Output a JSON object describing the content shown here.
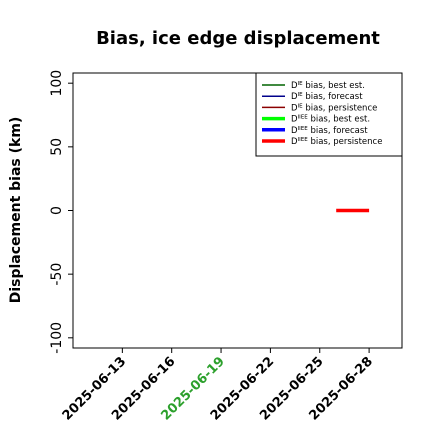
{
  "chart_data": {
    "type": "line",
    "title": "Bias, ice edge displacement",
    "xlabel": "",
    "ylabel": "Displacement bias (km)",
    "ylim": [
      -108,
      108
    ],
    "xlim": [
      "2025-06-10",
      "2025-06-30"
    ],
    "yticks": [
      -100,
      -50,
      0,
      50,
      100
    ],
    "xticks": [
      "2025-06-13",
      "2025-06-16",
      "2025-06-19",
      "2025-06-22",
      "2025-06-25",
      "2025-06-28"
    ],
    "xtick_colors": [
      "#000000",
      "#000000",
      "#2ca02c",
      "#000000",
      "#000000",
      "#000000"
    ],
    "grid": false,
    "legend_position": "top-right",
    "legend": [
      {
        "label": "D",
        "sup": "IE",
        "suffix": " bias, best est.",
        "color": "#006400",
        "thick": false
      },
      {
        "label": "D",
        "sup": "IE",
        "suffix": " bias, forecast",
        "color": "#00008b",
        "thick": false
      },
      {
        "label": "D",
        "sup": "IE",
        "suffix": " bias, persistence",
        "color": "#8b0000",
        "thick": false
      },
      {
        "label": "D",
        "sup": "IIEE",
        "suffix": " bias, best est.",
        "color": "#00ff00",
        "thick": true
      },
      {
        "label": "D",
        "sup": "IIEE",
        "suffix": " bias, forecast",
        "color": "#0000ff",
        "thick": true
      },
      {
        "label": "D",
        "sup": "IIEE",
        "suffix": " bias, persistence",
        "color": "#ff0000",
        "thick": true
      }
    ],
    "series": [
      {
        "color": "#ff0000",
        "thick": true,
        "x": [
          "2025-06-26",
          "2025-06-28"
        ],
        "y": [
          0,
          0
        ]
      }
    ]
  }
}
